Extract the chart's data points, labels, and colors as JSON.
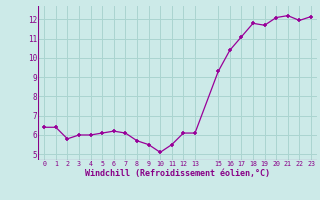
{
  "x": [
    0,
    1,
    2,
    3,
    4,
    5,
    6,
    7,
    8,
    9,
    10,
    11,
    12,
    13,
    15,
    16,
    17,
    18,
    19,
    20,
    21,
    22,
    23
  ],
  "y": [
    6.4,
    6.4,
    5.8,
    6.0,
    6.0,
    6.1,
    6.2,
    6.1,
    5.7,
    5.5,
    5.1,
    5.5,
    6.1,
    6.1,
    9.3,
    10.4,
    11.1,
    11.8,
    11.7,
    12.1,
    12.2,
    11.95,
    12.15
  ],
  "line_color": "#990099",
  "marker_color": "#990099",
  "bg_color": "#cceae8",
  "grid_color": "#aad4d0",
  "xlabel": "Windchill (Refroidissement éolien,°C)",
  "xlabel_color": "#880088",
  "tick_color": "#880088",
  "xlim": [
    -0.5,
    23.5
  ],
  "ylim": [
    4.7,
    12.7
  ],
  "xticks": [
    0,
    1,
    2,
    3,
    4,
    5,
    6,
    7,
    8,
    9,
    10,
    11,
    12,
    13,
    15,
    16,
    17,
    18,
    19,
    20,
    21,
    22,
    23
  ],
  "yticks": [
    5,
    6,
    7,
    8,
    9,
    10,
    11,
    12
  ],
  "title": ""
}
